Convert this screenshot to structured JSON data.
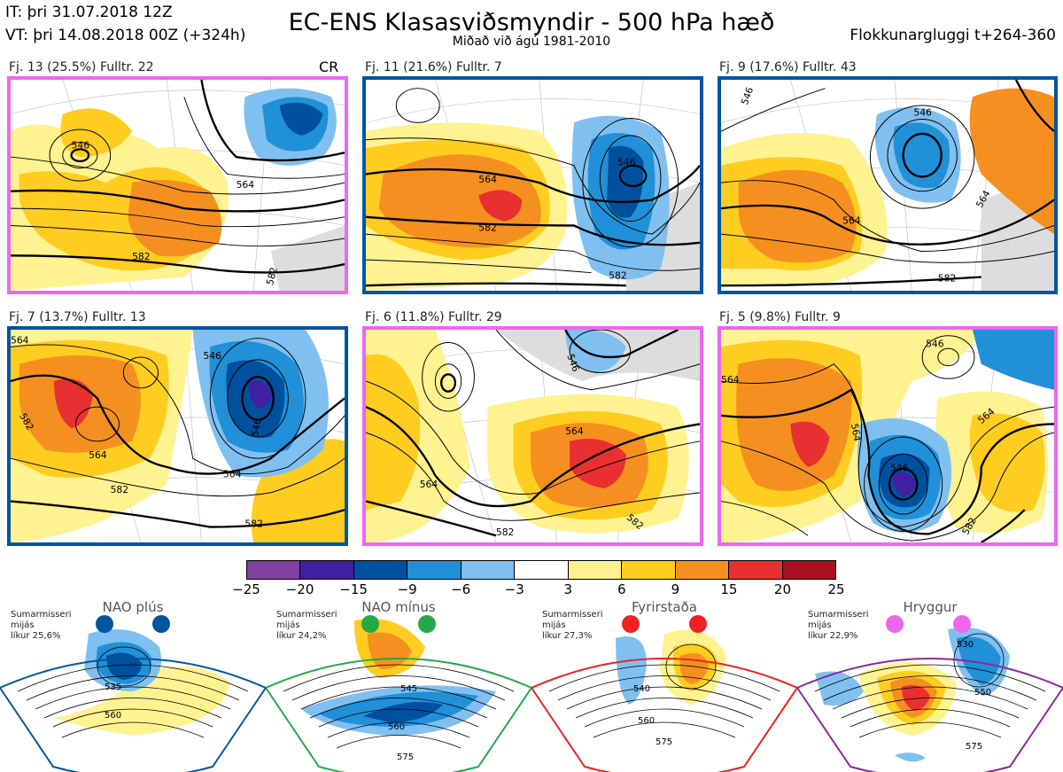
{
  "header": {
    "it": "IT: þri 31.07.2018 12Z",
    "vt": "VT: þri 14.08.2018 00Z  (+324h)",
    "title": "EC-ENS Klasasviðsmyndir - 500 hPa hæð",
    "subtitle": "Miðað við ágú 1981-2010",
    "window": "Flokkunargluggi t+264-360"
  },
  "panels": [
    {
      "label": "Fj. 13 (25.5%)   Fulltr. 22",
      "border": "#ee66ee",
      "extra": "CR",
      "contours": [
        "546",
        "564",
        "582",
        "582"
      ]
    },
    {
      "label": "Fj. 11 (21.6%)   Fulltr. 7",
      "border": "#0055a0",
      "contours": [
        "546",
        "564",
        "582",
        "582"
      ]
    },
    {
      "label": "Fj. 9 (17.6%)   Fulltr. 43",
      "border": "#0055a0",
      "contours": [
        "546",
        "564",
        "564",
        "582",
        "546"
      ]
    },
    {
      "label": "Fj. 7 (13.7%)   Fulltr. 13",
      "border": "#0055a0",
      "contours": [
        "564",
        "546",
        "582",
        "564",
        "546",
        "564",
        "582",
        "582"
      ]
    },
    {
      "label": "Fj. 6 (11.8%)   Fulltr. 29",
      "border": "#ee66ee",
      "contours": [
        "546",
        "564",
        "564",
        "582",
        "582"
      ]
    },
    {
      "label": "Fj. 5 (9.8%)   Fulltr. 9",
      "border": "#ee66ee",
      "contours": [
        "546",
        "564",
        "564",
        "546",
        "582"
      ]
    }
  ],
  "colorbar": {
    "colors": [
      "#8040a0",
      "#4020a0",
      "#0050a0",
      "#2090d8",
      "#80c0f0",
      "#ffffff",
      "#fff090",
      "#ffcc20",
      "#f59020",
      "#e83030",
      "#a81020"
    ],
    "ticks": [
      "−25",
      "−20",
      "−15",
      "−9",
      "−6",
      "−3",
      "3",
      "6",
      "9",
      "15",
      "20",
      "25"
    ]
  },
  "regimes": [
    {
      "name": "NAO plús",
      "note": [
        "Sumarmisseri",
        "mijás",
        "líkur 25,6%"
      ],
      "color": "#0055a0",
      "contours": [
        "535",
        "560"
      ]
    },
    {
      "name": "NAO mínus",
      "note": [
        "Sumarmisseri",
        "mijás",
        "líkur 24,2%"
      ],
      "color": "#22aa44",
      "contours": [
        "545",
        "560",
        "575"
      ]
    },
    {
      "name": "Fyrirstaða",
      "note": [
        "Sumarmisseri",
        "mijás",
        "líkur 27,3%"
      ],
      "color": "#ee2222",
      "contours": [
        "540",
        "560",
        "575"
      ]
    },
    {
      "name": "Hryggur",
      "note": [
        "Sumarmisseri",
        "mijás",
        "líkur 22,9%"
      ],
      "color": "#ee66ee",
      "edge": "#8a2a9a",
      "contours": [
        "530",
        "550",
        "575"
      ]
    }
  ]
}
